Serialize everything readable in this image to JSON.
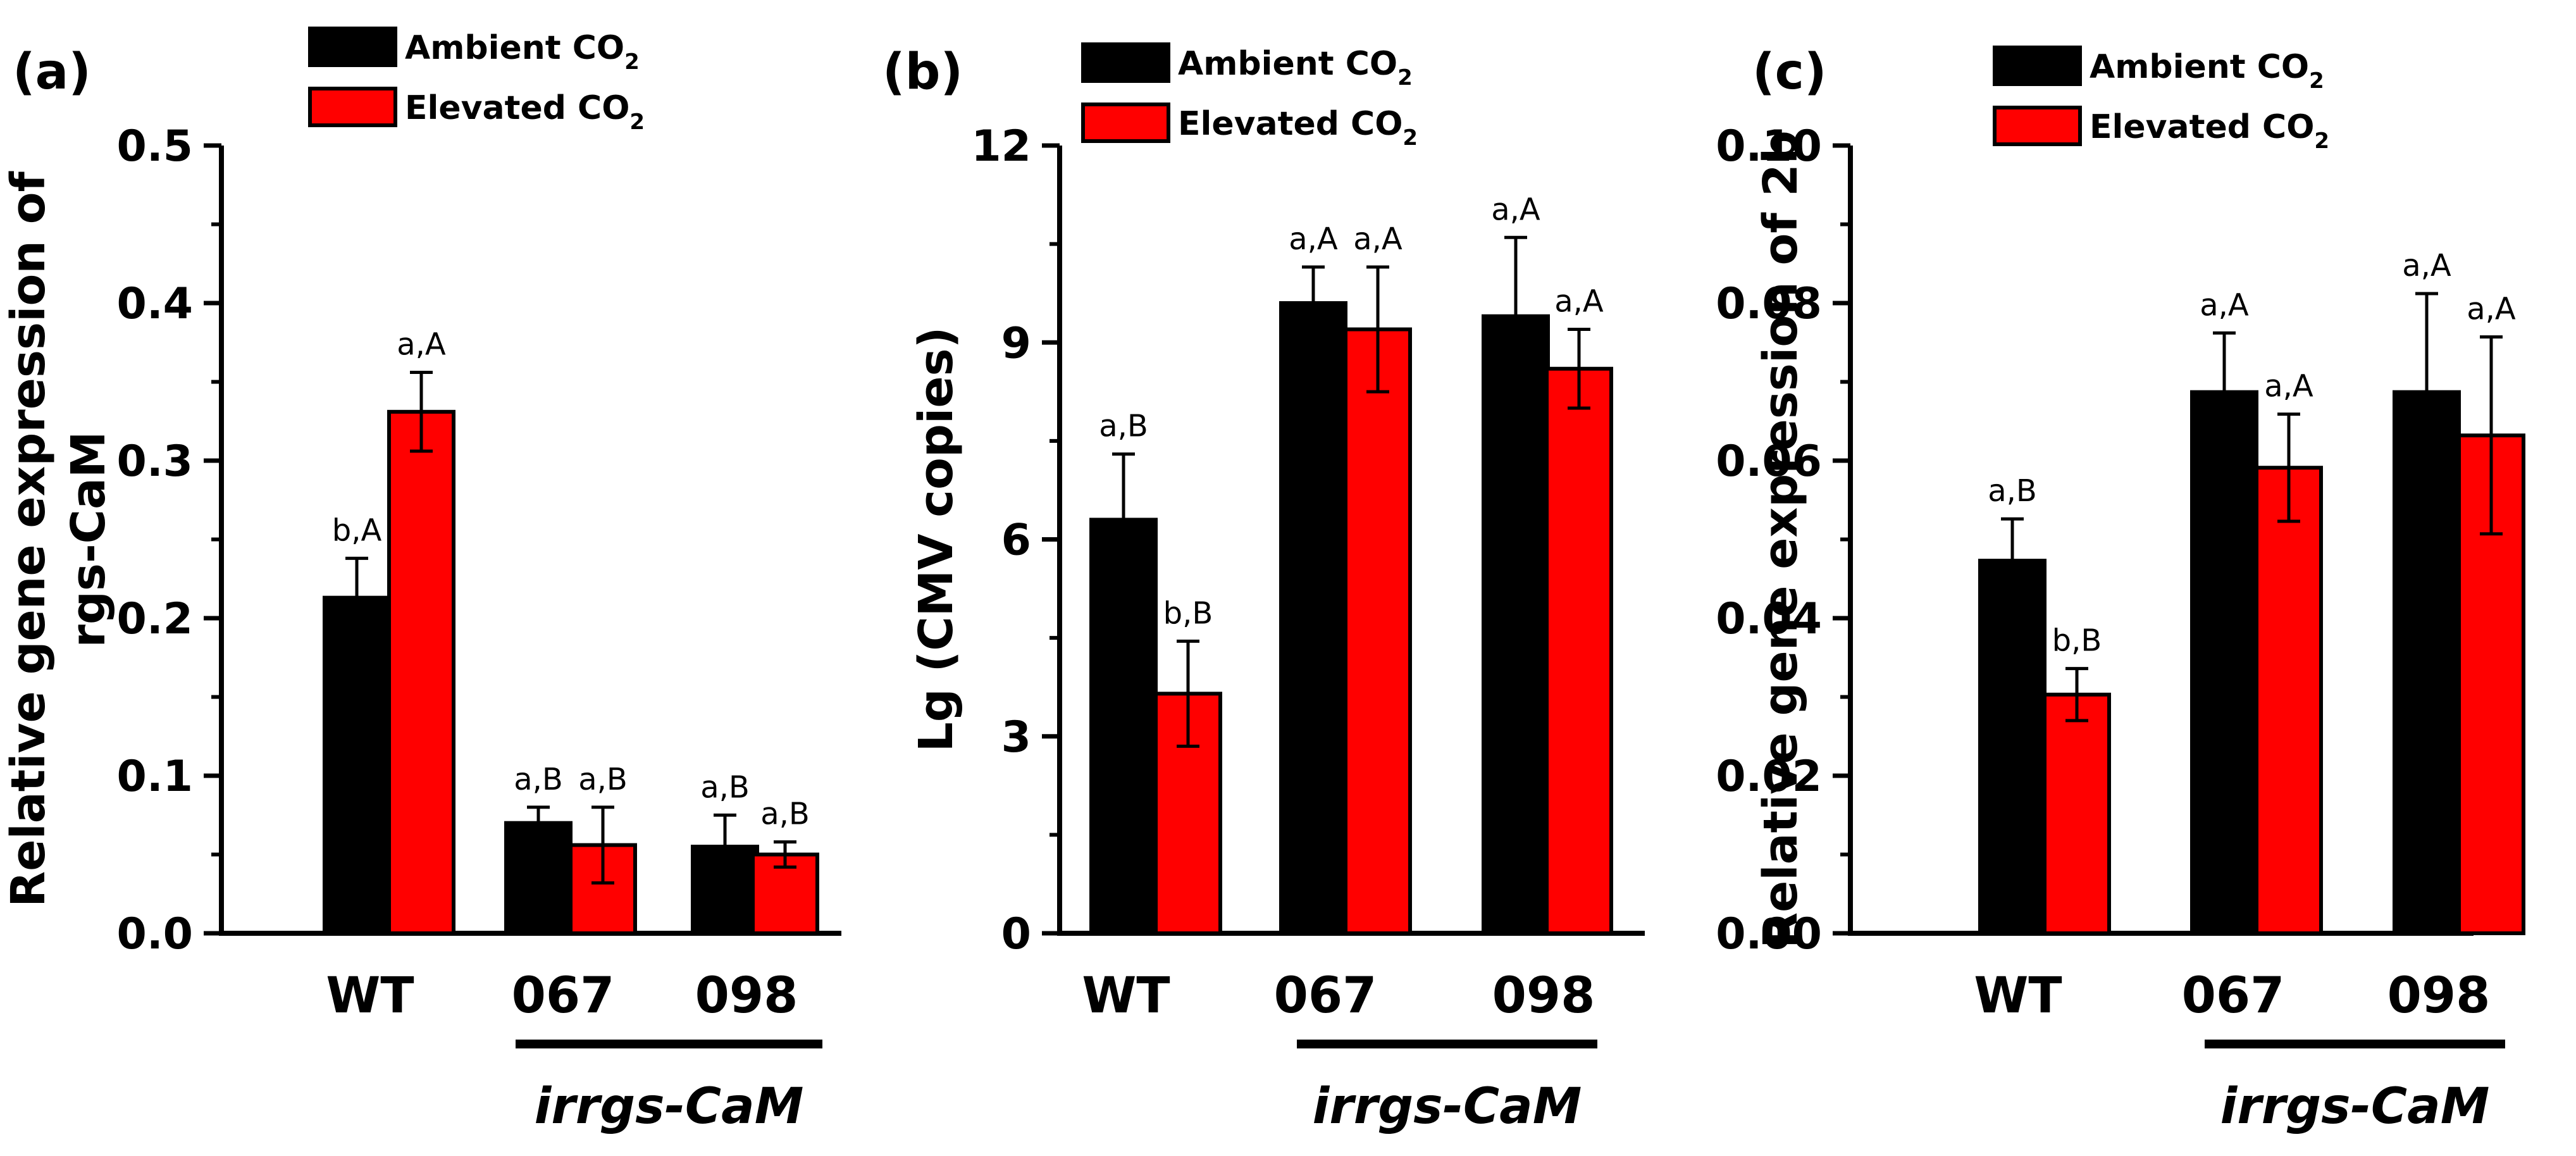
{
  "colors": {
    "ambient": "#000000",
    "elevated": "#ff0000",
    "axis": "#000000"
  },
  "chart_data": [
    {
      "type": "bar",
      "panel_label": "(a)",
      "ylabel": [
        "Relative gene expression of",
        "rgs-CaM"
      ],
      "ylim": [
        0,
        0.5
      ],
      "yticks": [
        "0.0",
        "0.1",
        "0.2",
        "0.3",
        "0.4",
        "0.5"
      ],
      "categories": [
        "WT",
        "067",
        "098"
      ],
      "group_label": "irrgs-CaM",
      "legend": [
        {
          "text": "Ambient CO",
          "sub": "2"
        },
        {
          "text": "Elevated CO",
          "sub": "2"
        }
      ],
      "series": [
        {
          "name": "Ambient CO2",
          "values": [
            0.213,
            0.07,
            0.055
          ],
          "errors": [
            0.025,
            0.01,
            0.02
          ],
          "labels": [
            "b,A",
            "a,B",
            "a,B"
          ]
        },
        {
          "name": "Elevated CO2",
          "values": [
            0.331,
            0.056,
            0.05
          ],
          "errors": [
            0.025,
            0.024,
            0.008
          ],
          "labels": [
            "a,A",
            "a,B",
            "a,B"
          ]
        }
      ]
    },
    {
      "type": "bar",
      "panel_label": "(b)",
      "ylabel": [
        "Lg (CMV copies)"
      ],
      "ylim": [
        0,
        12
      ],
      "yticks": [
        "0",
        "3",
        "6",
        "9",
        "12"
      ],
      "categories": [
        "WT",
        "067",
        "098"
      ],
      "group_label": "irrgs-CaM",
      "legend": [
        {
          "text": "Ambient CO",
          "sub": "2"
        },
        {
          "text": "Elevated CO",
          "sub": "2"
        }
      ],
      "series": [
        {
          "name": "Ambient CO2",
          "values": [
            6.3,
            9.6,
            9.4
          ],
          "errors": [
            1.0,
            0.55,
            1.2
          ],
          "labels": [
            "a,B",
            "a,A",
            "a,A"
          ]
        },
        {
          "name": "Elevated CO2",
          "values": [
            3.65,
            9.2,
            8.6
          ],
          "errors": [
            0.8,
            0.95,
            0.6
          ],
          "labels": [
            "b,B",
            "a,A",
            "a,A"
          ]
        }
      ]
    },
    {
      "type": "bar",
      "panel_label": "(c)",
      "ylabel": [
        "Relative gene expression of 2b"
      ],
      "ylim": [
        0,
        0.1
      ],
      "yticks": [
        "0.00",
        "0.02",
        "0.04",
        "0.06",
        "0.08",
        "0.10"
      ],
      "categories": [
        "WT",
        "067",
        "098"
      ],
      "group_label": "irrgs-CaM",
      "legend": [
        {
          "text": "Ambient CO",
          "sub": "2"
        },
        {
          "text": "Elevated CO",
          "sub": "2"
        }
      ],
      "series": [
        {
          "name": "Ambient CO2",
          "values": [
            0.0473,
            0.0687,
            0.0687
          ],
          "errors": [
            0.0053,
            0.0075,
            0.0125
          ],
          "labels": [
            "a,B",
            "a,A",
            "a,A"
          ]
        },
        {
          "name": "Elevated CO2",
          "values": [
            0.0303,
            0.0591,
            0.0632
          ],
          "errors": [
            0.0033,
            0.0068,
            0.0125
          ],
          "labels": [
            "b,B",
            "a,A",
            "a,A"
          ]
        }
      ]
    }
  ]
}
